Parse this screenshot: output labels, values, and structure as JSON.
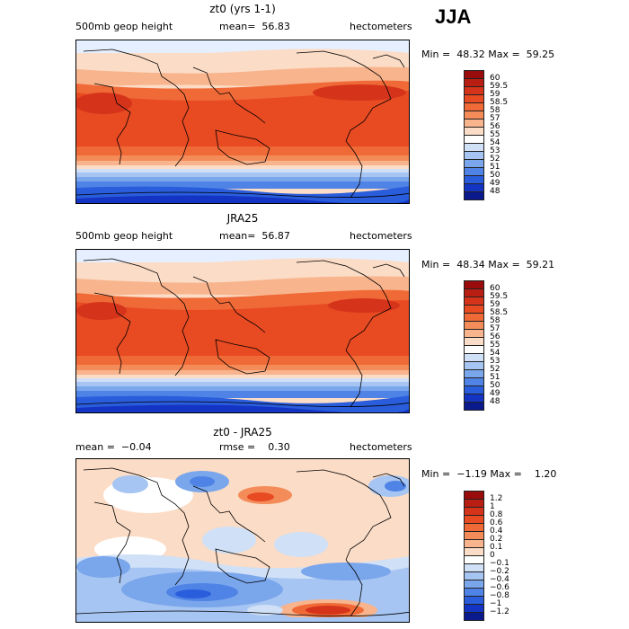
{
  "season": "JJA",
  "panels": [
    {
      "title": "zt0 (yrs 1-1)",
      "left": "500mb geop height",
      "mid": "mean=  56.83",
      "right": "hectometers",
      "minmax": "Min =  48.32 Max =  59.25",
      "colorbar": {
        "labels": [
          "60",
          "59.5",
          "59",
          "58.5",
          "58",
          "57",
          "56",
          "55",
          "54",
          "53",
          "52",
          "51",
          "50",
          "49",
          "48"
        ],
        "colors": [
          "#9a0c0c",
          "#b81e12",
          "#d5341b",
          "#e84a22",
          "#f06a38",
          "#f48c5a",
          "#f8b48d",
          "#fbdcc6",
          "#ffffff",
          "#cfe0f7",
          "#a7c5f2",
          "#7aa6ec",
          "#4f84e6",
          "#2a5ddc",
          "#1435c4",
          "#0a1a8c"
        ],
        "values": [
          60,
          59.5,
          59,
          58.5,
          58,
          57,
          56,
          55,
          54,
          53,
          52,
          51,
          50,
          49,
          48
        ]
      }
    },
    {
      "title": "JRA25",
      "left": "500mb geop height",
      "mid": "mean=  56.87",
      "right": "hectometers",
      "minmax": "Min =  48.34 Max =  59.21",
      "colorbar": {
        "labels": [
          "60",
          "59.5",
          "59",
          "58.5",
          "58",
          "57",
          "56",
          "55",
          "54",
          "53",
          "52",
          "51",
          "50",
          "49",
          "48"
        ],
        "colors": [
          "#9a0c0c",
          "#b81e12",
          "#d5341b",
          "#e84a22",
          "#f06a38",
          "#f48c5a",
          "#f8b48d",
          "#fbdcc6",
          "#ffffff",
          "#cfe0f7",
          "#a7c5f2",
          "#7aa6ec",
          "#4f84e6",
          "#2a5ddc",
          "#1435c4",
          "#0a1a8c"
        ],
        "values": [
          60,
          59.5,
          59,
          58.5,
          58,
          57,
          56,
          55,
          54,
          53,
          52,
          51,
          50,
          49,
          48
        ]
      }
    },
    {
      "title": "zt0 - JRA25",
      "left": "mean =  −0.04",
      "mid": "rmse =    0.30",
      "right": "hectometers",
      "minmax": "Min =  −1.19 Max =    1.20",
      "colorbar": {
        "labels": [
          "1.2",
          "1",
          "0.8",
          "0.6",
          "0.4",
          "0.2",
          "0.1",
          "0",
          "−0.1",
          "−0.2",
          "−0.4",
          "−0.6",
          "−0.8",
          "−1",
          "−1.2"
        ],
        "colors": [
          "#9a0c0c",
          "#b81e12",
          "#d5341b",
          "#e84a22",
          "#f06a38",
          "#f48c5a",
          "#f8b48d",
          "#fbdcc6",
          "#ffffff",
          "#cfe0f7",
          "#a7c5f2",
          "#7aa6ec",
          "#4f84e6",
          "#2a5ddc",
          "#1435c4",
          "#0a1a8c"
        ],
        "values": [
          1.2,
          1,
          0.8,
          0.6,
          0.4,
          0.2,
          0.1,
          0,
          -0.1,
          -0.2,
          -0.4,
          -0.6,
          -0.8,
          -1,
          -1.2
        ]
      }
    }
  ]
}
